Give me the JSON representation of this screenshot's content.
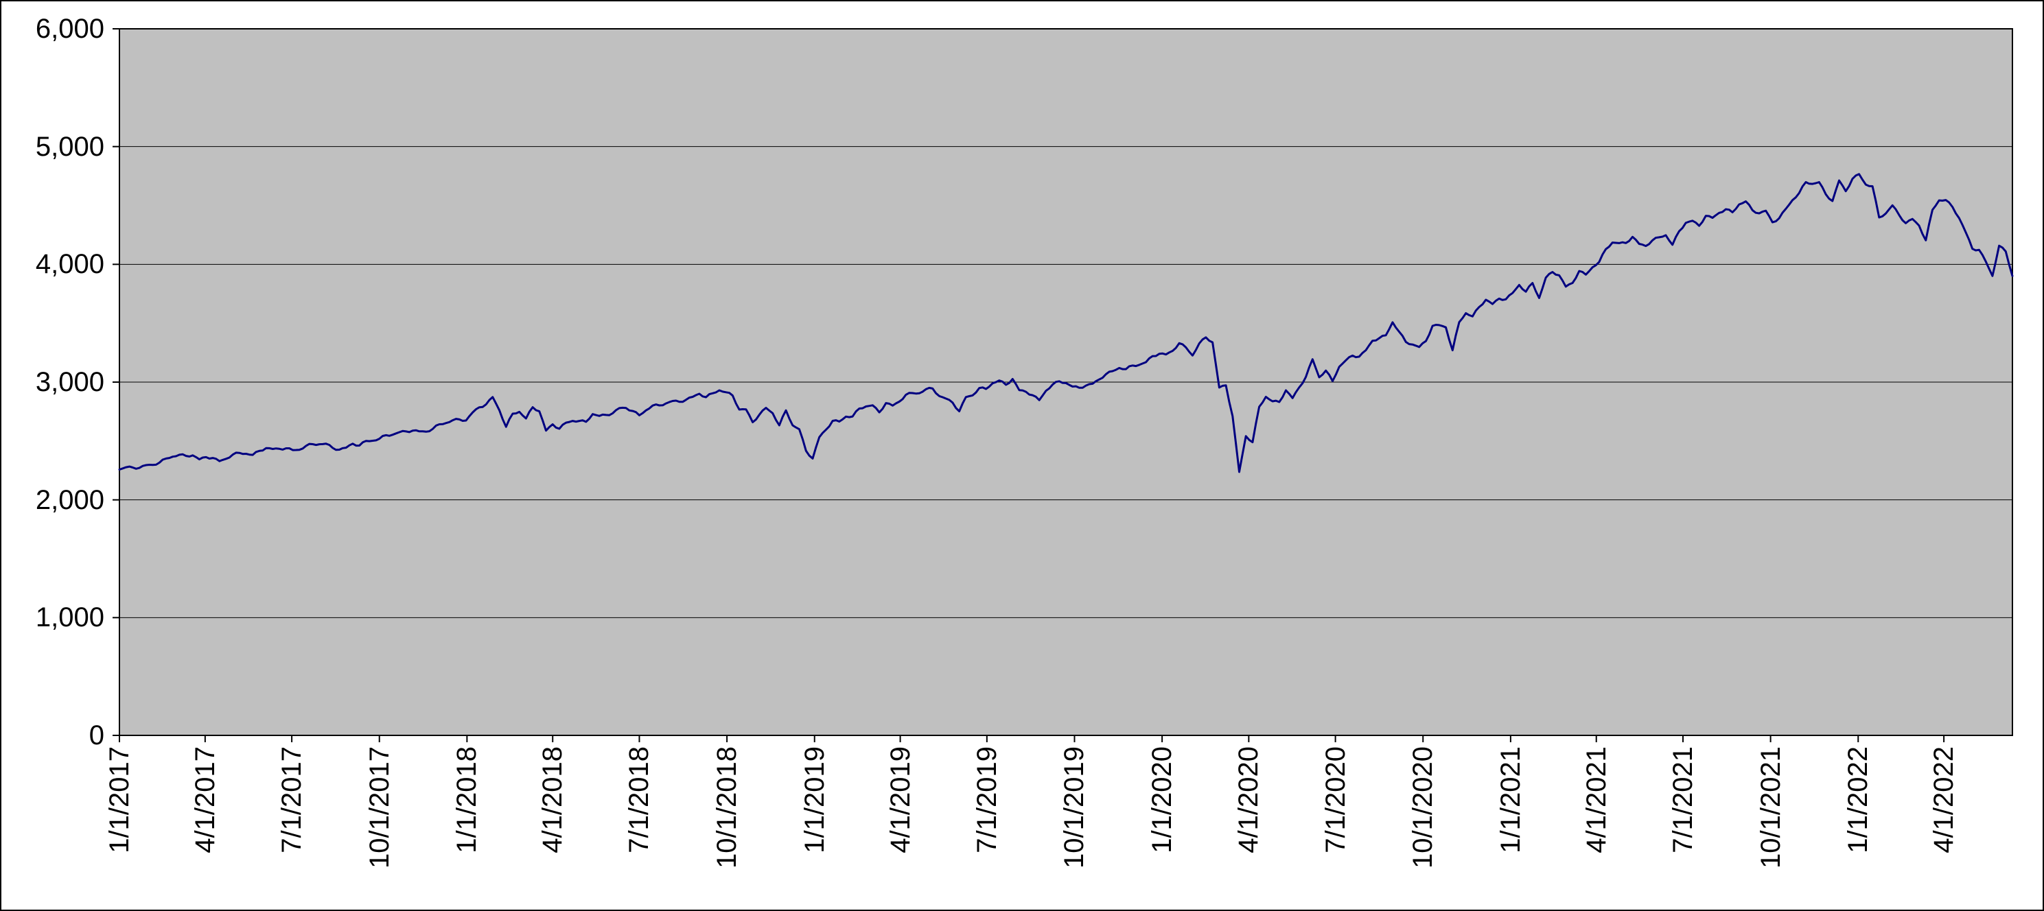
{
  "chart_data": {
    "type": "line",
    "title": "",
    "xlabel": "",
    "ylabel": "",
    "line_color": "#000080",
    "plot_bg": "#c0c0c0",
    "grid_color": "#000000",
    "ylim": [
      0,
      6000
    ],
    "y_ticks": [
      0,
      1000,
      2000,
      3000,
      4000,
      5000,
      6000
    ],
    "y_tick_labels": [
      "0",
      "1,000",
      "2,000",
      "3,000",
      "4,000",
      "5,000",
      "6,000"
    ],
    "x_tick_labels": [
      "1/1/2017",
      "4/1/2017",
      "7/1/2017",
      "10/1/2017",
      "1/1/2018",
      "4/1/2018",
      "7/1/2018",
      "10/1/2018",
      "1/1/2019",
      "4/1/2019",
      "7/1/2019",
      "10/1/2019",
      "1/1/2020",
      "4/1/2020",
      "7/1/2020",
      "10/1/2020",
      "1/1/2021",
      "4/1/2021",
      "7/1/2021",
      "10/1/2021",
      "1/1/2022",
      "4/1/2022"
    ],
    "x_start_date": "1/1/2017",
    "x_interval_days": 7,
    "grid": true,
    "legend": "none",
    "values": [
      2257,
      2277,
      2275,
      2271,
      2295,
      2297,
      2316,
      2351,
      2367,
      2383,
      2373,
      2378,
      2344,
      2363,
      2356,
      2329,
      2349,
      2384,
      2399,
      2391,
      2382,
      2416,
      2439,
      2432,
      2433,
      2438,
      2423,
      2425,
      2459,
      2473,
      2472,
      2477,
      2441,
      2426,
      2443,
      2477,
      2461,
      2500,
      2502,
      2519,
      2549,
      2553,
      2575,
      2581,
      2588,
      2582,
      2579,
      2602,
      2642,
      2652,
      2676,
      2683,
      2674,
      2743,
      2786,
      2810,
      2873,
      2762,
      2620,
      2732,
      2747,
      2691,
      2787,
      2752,
      2588,
      2641,
      2604,
      2656,
      2670,
      2670,
      2663,
      2728,
      2713,
      2721,
      2735,
      2779,
      2780,
      2755,
      2718,
      2760,
      2801,
      2802,
      2819,
      2840,
      2833,
      2850,
      2875,
      2901,
      2872,
      2905,
      2930,
      2914,
      2886,
      2767,
      2768,
      2659,
      2723,
      2781,
      2736,
      2633,
      2760,
      2633,
      2600,
      2417,
      2351,
      2532,
      2596,
      2671,
      2665,
      2707,
      2708,
      2776,
      2793,
      2803,
      2743,
      2822,
      2801,
      2834,
      2893,
      2907,
      2905,
      2940,
      2945,
      2881,
      2860,
      2826,
      2752,
      2873,
      2887,
      2950,
      2942,
      2990,
      3014,
      2977,
      3026,
      2932,
      2918,
      2889,
      2847,
      2926,
      2979,
      3007,
      2992,
      2962,
      2952,
      2970,
      2986,
      3023,
      3067,
      3093,
      3120,
      3110,
      3141,
      3146,
      3169,
      3221,
      3240,
      3235,
      3265,
      3330,
      3295,
      3226,
      3328,
      3380,
      3338,
      2954,
      2972,
      2711,
      2237,
      2541,
      2489,
      2790,
      2875,
      2837,
      2831,
      2930,
      2864,
      2955,
      3044,
      3194,
      3041,
      3098,
      3009,
      3130,
      3185,
      3225,
      3216,
      3271,
      3351,
      3373,
      3397,
      3508,
      3427,
      3341,
      3319,
      3298,
      3348,
      3477,
      3484,
      3465,
      3270,
      3509,
      3585,
      3558,
      3638,
      3699,
      3663,
      3709,
      3703,
      3756,
      3825,
      3768,
      3841,
      3714,
      3887,
      3935,
      3907,
      3811,
      3842,
      3943,
      3913,
      3975,
      4020,
      4129,
      4185,
      4180,
      4181,
      4233,
      4174,
      4156,
      4204,
      4230,
      4247,
      4166,
      4281,
      4352,
      4370,
      4327,
      4412,
      4395,
      4437,
      4468,
      4442,
      4509,
      4535,
      4459,
      4433,
      4455,
      4357,
      4391,
      4471,
      4545,
      4605,
      4698,
      4683,
      4698,
      4595,
      4538,
      4712,
      4621,
      4726,
      4766,
      4677,
      4663,
      4398,
      4432,
      4501,
      4419,
      4349,
      4385,
      4329,
      4204,
      4463,
      4543,
      4546,
      4488,
      4393,
      4272,
      4132,
      4123,
      4024,
      3901,
      4158,
      4109,
      3901
    ]
  }
}
